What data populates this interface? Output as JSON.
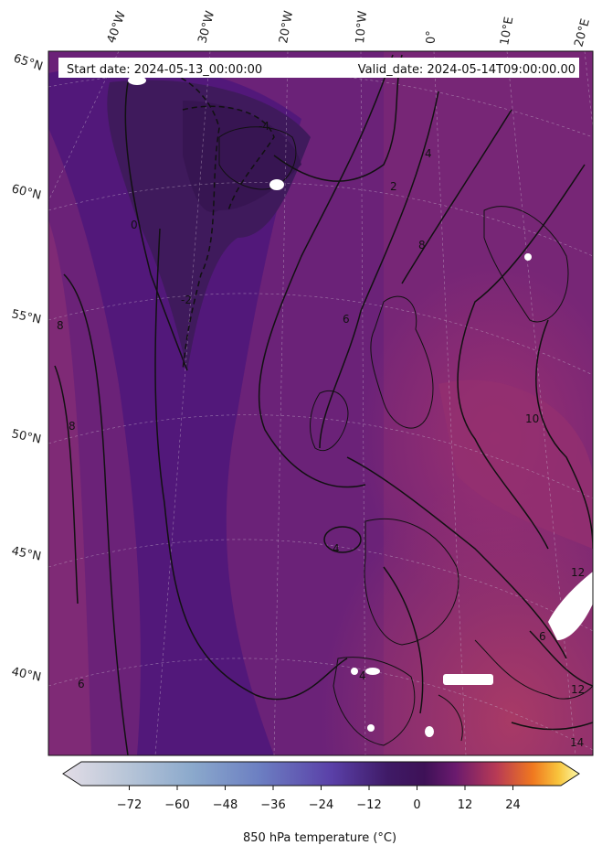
{
  "header": {
    "start_date": "Start date: 2024-05-13_00:00:00",
    "valid_date": "Valid_date: 2024-05-14T09:00:00.00"
  },
  "map": {
    "projection": "polar stereographic",
    "field": "850 hPa temperature",
    "lon_labels": [
      "40°W",
      "30°W",
      "20°W",
      "10°W",
      "0°",
      "10°E",
      "20°E"
    ],
    "lat_labels": [
      "65°N",
      "60°N",
      "55°N",
      "50°N",
      "45°N",
      "40°N"
    ],
    "contour_labels": [
      "-4",
      "-2",
      "0",
      "2",
      "4",
      "6",
      "8",
      "10",
      "12",
      "14"
    ]
  },
  "colorbar": {
    "label": "850 hPa temperature (°C)",
    "ticks": [
      "-72",
      "-60",
      "-48",
      "-36",
      "-24",
      "-12",
      "0",
      "12",
      "24"
    ],
    "tick_values": [
      -72,
      -60,
      -48,
      -36,
      -24,
      -12,
      0,
      12,
      24
    ],
    "vmin": -84,
    "vmax": 36,
    "colormap": "twilight-inferno",
    "colors": [
      "#e3dde6",
      "#9cb9cf",
      "#6a89c0",
      "#5b4fb0",
      "#3a1a6a",
      "#4b1470",
      "#8a2a6a",
      "#d04a4a",
      "#f08020",
      "#f8c53c",
      "#fcf9a8"
    ]
  },
  "colors": {
    "cold": "#3d1657",
    "mid": "#5e1f78",
    "warm": "#8d2d72",
    "contour": "#111111",
    "gridline": "#bbbbbb"
  }
}
